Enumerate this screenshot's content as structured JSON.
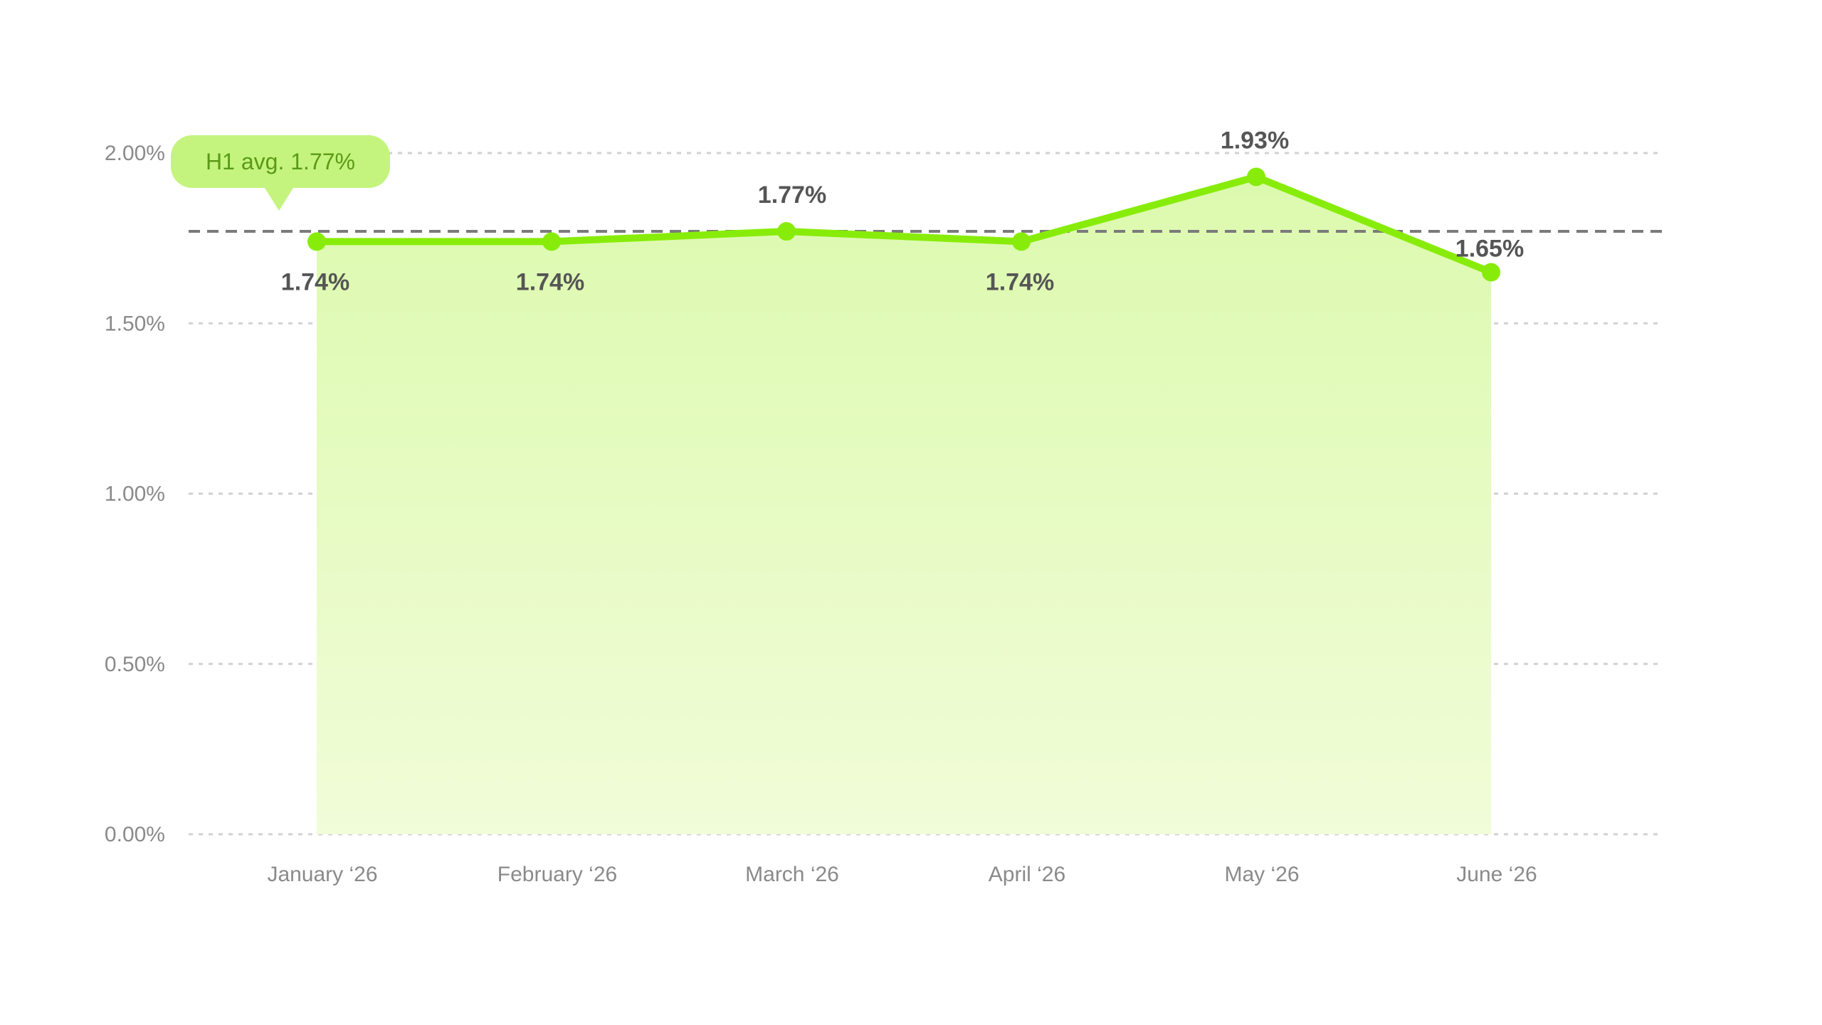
{
  "chart_data": {
    "type": "area",
    "categories": [
      "January ‘26",
      "February ‘26",
      "March ‘26",
      "April ‘26",
      "May ‘26",
      "June ‘26"
    ],
    "values": [
      1.74,
      1.74,
      1.77,
      1.74,
      1.93,
      1.65
    ],
    "data_labels": [
      "1.74%",
      "1.74%",
      "1.77%",
      "1.74%",
      "1.93%",
      "1.65%"
    ],
    "y_ticks": [
      0,
      0.5,
      1.0,
      1.5,
      2.0
    ],
    "y_tick_labels": [
      "0.00%",
      "0.50%",
      "1.00%",
      "1.50%",
      "2.00%"
    ],
    "ylim": [
      0,
      2.0
    ],
    "grid": true,
    "reference_line": {
      "value": 1.77,
      "label": "H1 avg. 1.77%"
    },
    "colors": {
      "line": "#88ec0a",
      "area_top": "#dcfaae",
      "area_bottom": "#f1fcd8",
      "grid": "#d2d2d2",
      "avg_line": "#7a7a7a",
      "avg_badge_bg": "#c4f47e",
      "avg_badge_text": "#5a9a16",
      "tick_text": "#8a8a8a",
      "data_label_text": "#555555"
    }
  }
}
